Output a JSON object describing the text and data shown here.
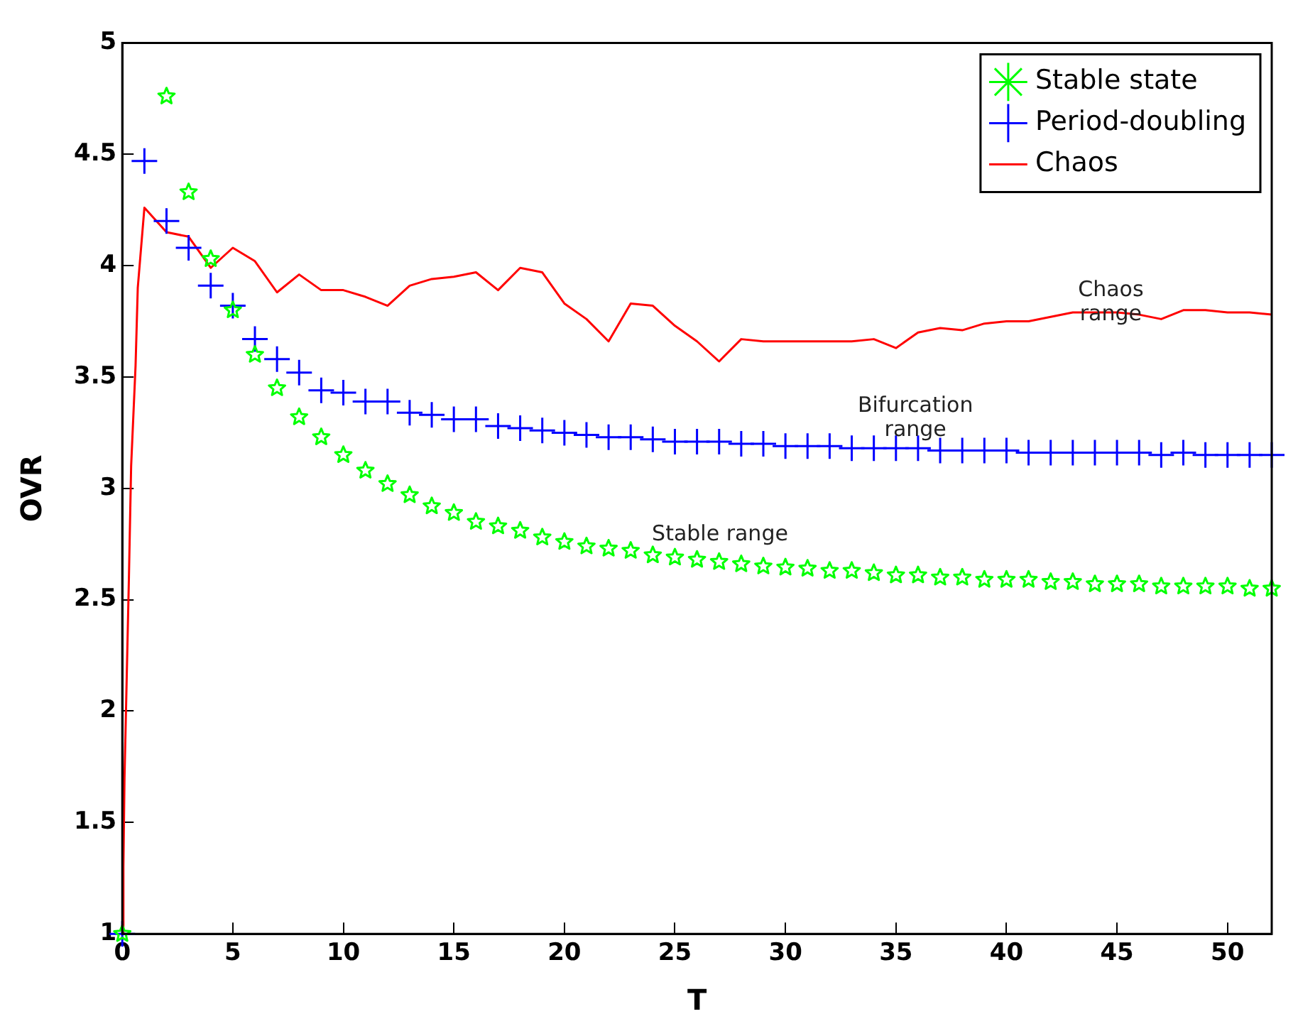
{
  "chart_data": {
    "type": "line",
    "xlabel": "T",
    "ylabel": "OVR",
    "xlim": [
      0,
      52
    ],
    "ylim": [
      1,
      5
    ],
    "xticks": [
      0,
      5,
      10,
      15,
      20,
      25,
      30,
      35,
      40,
      45,
      50
    ],
    "yticks": [
      1,
      1.5,
      2,
      2.5,
      3,
      3.5,
      4,
      4.5,
      5
    ],
    "grid": false,
    "legend": "top right",
    "series": [
      {
        "name": "Stable state",
        "type": "scatter",
        "marker": "star",
        "color": "#00ff00",
        "x": [
          0,
          1,
          2,
          3,
          4,
          5,
          6,
          7,
          8,
          9,
          10,
          11,
          12,
          13,
          14,
          15,
          16,
          17,
          18,
          19,
          20,
          21,
          22,
          23,
          24,
          25,
          26,
          27,
          28,
          29,
          30,
          31,
          32,
          33,
          34,
          35,
          36,
          37,
          38,
          39,
          40,
          41,
          42,
          43,
          44,
          45,
          46,
          47,
          48,
          49,
          50,
          51,
          52
        ],
        "values": [
          1,
          null,
          4.76,
          4.33,
          4.03,
          3.8,
          3.6,
          3.45,
          3.32,
          3.23,
          3.15,
          3.08,
          3.02,
          2.97,
          2.92,
          2.89,
          2.85,
          2.83,
          2.81,
          2.78,
          2.76,
          2.74,
          2.73,
          2.72,
          2.7,
          2.69,
          2.68,
          2.67,
          2.66,
          2.65,
          2.645,
          2.64,
          2.63,
          2.63,
          2.62,
          2.61,
          2.61,
          2.6,
          2.6,
          2.59,
          2.59,
          2.59,
          2.58,
          2.58,
          2.57,
          2.57,
          2.57,
          2.56,
          2.56,
          2.56,
          2.56,
          2.55,
          2.55
        ]
      },
      {
        "name": "Period-doubling",
        "type": "scatter",
        "marker": "cross",
        "color": "#0000ff",
        "x": [
          0,
          1,
          2,
          3,
          4,
          5,
          6,
          7,
          8,
          9,
          10,
          11,
          12,
          13,
          14,
          15,
          16,
          17,
          18,
          19,
          20,
          21,
          22,
          23,
          24,
          25,
          26,
          27,
          28,
          29,
          30,
          31,
          32,
          33,
          34,
          35,
          36,
          37,
          38,
          39,
          40,
          41,
          42,
          43,
          44,
          45,
          46,
          47,
          48,
          49,
          50,
          51,
          52
        ],
        "values": [
          1,
          4.47,
          4.2,
          4.08,
          3.91,
          3.82,
          3.67,
          3.58,
          3.52,
          3.44,
          3.43,
          3.39,
          3.39,
          3.34,
          3.33,
          3.31,
          3.31,
          3.28,
          3.27,
          3.26,
          3.25,
          3.24,
          3.23,
          3.23,
          3.22,
          3.21,
          3.21,
          3.21,
          3.2,
          3.2,
          3.19,
          3.19,
          3.19,
          3.18,
          3.18,
          3.18,
          3.18,
          3.17,
          3.17,
          3.17,
          3.17,
          3.16,
          3.16,
          3.16,
          3.16,
          3.16,
          3.16,
          3.15,
          3.16,
          3.15,
          3.15,
          3.15,
          3.15
        ]
      },
      {
        "name": "Chaos",
        "type": "line",
        "marker": "none",
        "line_style": "solid",
        "color": "#ff0000",
        "x": [
          0,
          0.05,
          0.1,
          0.2,
          0.3,
          0.4,
          0.6,
          0.7,
          1,
          2,
          3,
          4,
          5,
          6,
          7,
          8,
          9,
          10,
          11,
          12,
          13,
          14,
          15,
          16,
          17,
          18,
          19,
          20,
          21,
          22,
          23,
          24,
          25,
          26,
          27,
          28,
          29,
          30,
          31,
          32,
          33,
          34,
          35,
          36,
          37,
          38,
          39,
          40,
          41,
          42,
          43,
          44,
          45,
          46,
          47,
          48,
          49,
          50,
          51,
          52
        ],
        "values": [
          1,
          1.3,
          1.7,
          2.15,
          2.6,
          3.1,
          3.55,
          3.9,
          4.26,
          4.15,
          4.13,
          3.99,
          4.08,
          4.02,
          3.88,
          3.96,
          3.89,
          3.89,
          3.86,
          3.82,
          3.91,
          3.94,
          3.95,
          3.97,
          3.89,
          3.99,
          3.97,
          3.83,
          3.76,
          3.66,
          3.83,
          3.82,
          3.73,
          3.66,
          3.57,
          3.67,
          3.66,
          3.66,
          3.66,
          3.66,
          3.66,
          3.67,
          3.63,
          3.7,
          3.72,
          3.71,
          3.74,
          3.75,
          3.75,
          3.77,
          3.79,
          3.79,
          3.79,
          3.78,
          3.76,
          3.8,
          3.8,
          3.79,
          3.79,
          3.78
        ]
      }
    ],
    "annotations": [
      "Chaos range",
      "Bifurcation range",
      "Stable range"
    ]
  }
}
